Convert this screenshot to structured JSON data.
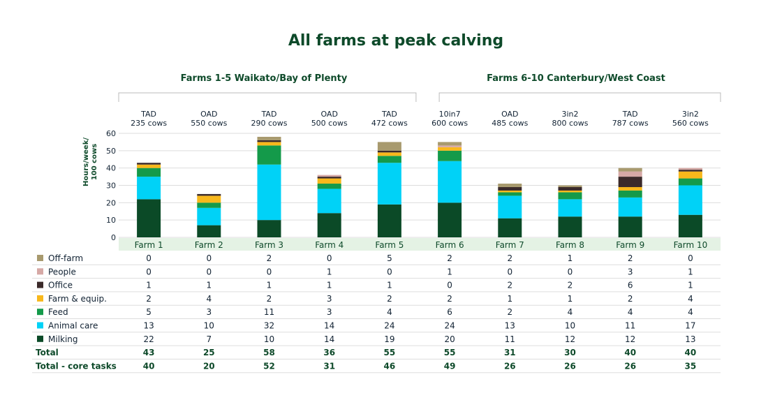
{
  "page_title": "All farms at peak calving",
  "groups": [
    {
      "label": "Farms 1-5 Waikato/Bay of Plenty",
      "start": 0,
      "end": 4
    },
    {
      "label": "Farms 6-10 Canterbury/West Coast",
      "start": 5,
      "end": 9
    }
  ],
  "farm_meta": [
    {
      "line1": "TAD",
      "line2": "235 cows"
    },
    {
      "line1": "OAD",
      "line2": "550 cows"
    },
    {
      "line1": "TAD",
      "line2": "290 cows"
    },
    {
      "line1": "OAD",
      "line2": "500 cows"
    },
    {
      "line1": "TAD",
      "line2": "472 cows"
    },
    {
      "line1": "10in7",
      "line2": "600 cows"
    },
    {
      "line1": "OAD",
      "line2": "485 cows"
    },
    {
      "line1": "3in2",
      "line2": "800 cows"
    },
    {
      "line1": "TAD",
      "line2": "787 cows"
    },
    {
      "line1": "3in2",
      "line2": "560 cows"
    }
  ],
  "chart_data": {
    "type": "bar",
    "stacked": true,
    "title": "All farms at peak calving",
    "ylabel": "Hours/week/ 100 cows",
    "ylim": [
      0,
      60
    ],
    "yticks": [
      0,
      10,
      20,
      30,
      40,
      50,
      60
    ],
    "grid": true,
    "categories": [
      "Farm 1",
      "Farm 2",
      "Farm 3",
      "Farm 4",
      "Farm 5",
      "Farm 6",
      "Farm 7",
      "Farm 8",
      "Farm 9",
      "Farm 10"
    ],
    "series": [
      {
        "name": "Milking",
        "color": "#0b4a27",
        "values": [
          22,
          7,
          10,
          14,
          19,
          20,
          11,
          12,
          12,
          13
        ]
      },
      {
        "name": "Animal care",
        "color": "#00d2f7",
        "values": [
          13,
          10,
          32,
          14,
          24,
          24,
          13,
          10,
          11,
          17
        ]
      },
      {
        "name": "Feed",
        "color": "#149a4a",
        "values": [
          5,
          3,
          11,
          3,
          4,
          6,
          2,
          4,
          4,
          4
        ]
      },
      {
        "name": "Farm & equip.",
        "color": "#f8b81c",
        "values": [
          2,
          4,
          2,
          3,
          2,
          2,
          1,
          1,
          2,
          4
        ]
      },
      {
        "name": "Office",
        "color": "#3b2a2a",
        "values": [
          1,
          1,
          1,
          1,
          1,
          0,
          2,
          2,
          6,
          1
        ]
      },
      {
        "name": "People",
        "color": "#d6a9a6",
        "values": [
          0,
          0,
          0,
          1,
          0,
          1,
          0,
          0,
          3,
          1
        ]
      },
      {
        "name": "Off-farm",
        "color": "#a89a6e",
        "values": [
          0,
          0,
          2,
          0,
          5,
          2,
          2,
          1,
          2,
          0
        ]
      }
    ],
    "table_rows_order": [
      "Off-farm",
      "People",
      "Office",
      "Farm & equip.",
      "Feed",
      "Animal care",
      "Milking"
    ],
    "totals": {
      "label": "Total",
      "values": [
        43,
        25,
        58,
        36,
        55,
        55,
        31,
        30,
        40,
        40
      ]
    },
    "core_totals": {
      "label": "Total - core tasks",
      "values": [
        40,
        20,
        52,
        31,
        46,
        49,
        26,
        26,
        26,
        35
      ]
    }
  },
  "colors": {
    "title": "#0e4a2a",
    "category_band": "#e4f2e4",
    "gridline": "#dddddd",
    "bracket": "#bbbbbb"
  }
}
